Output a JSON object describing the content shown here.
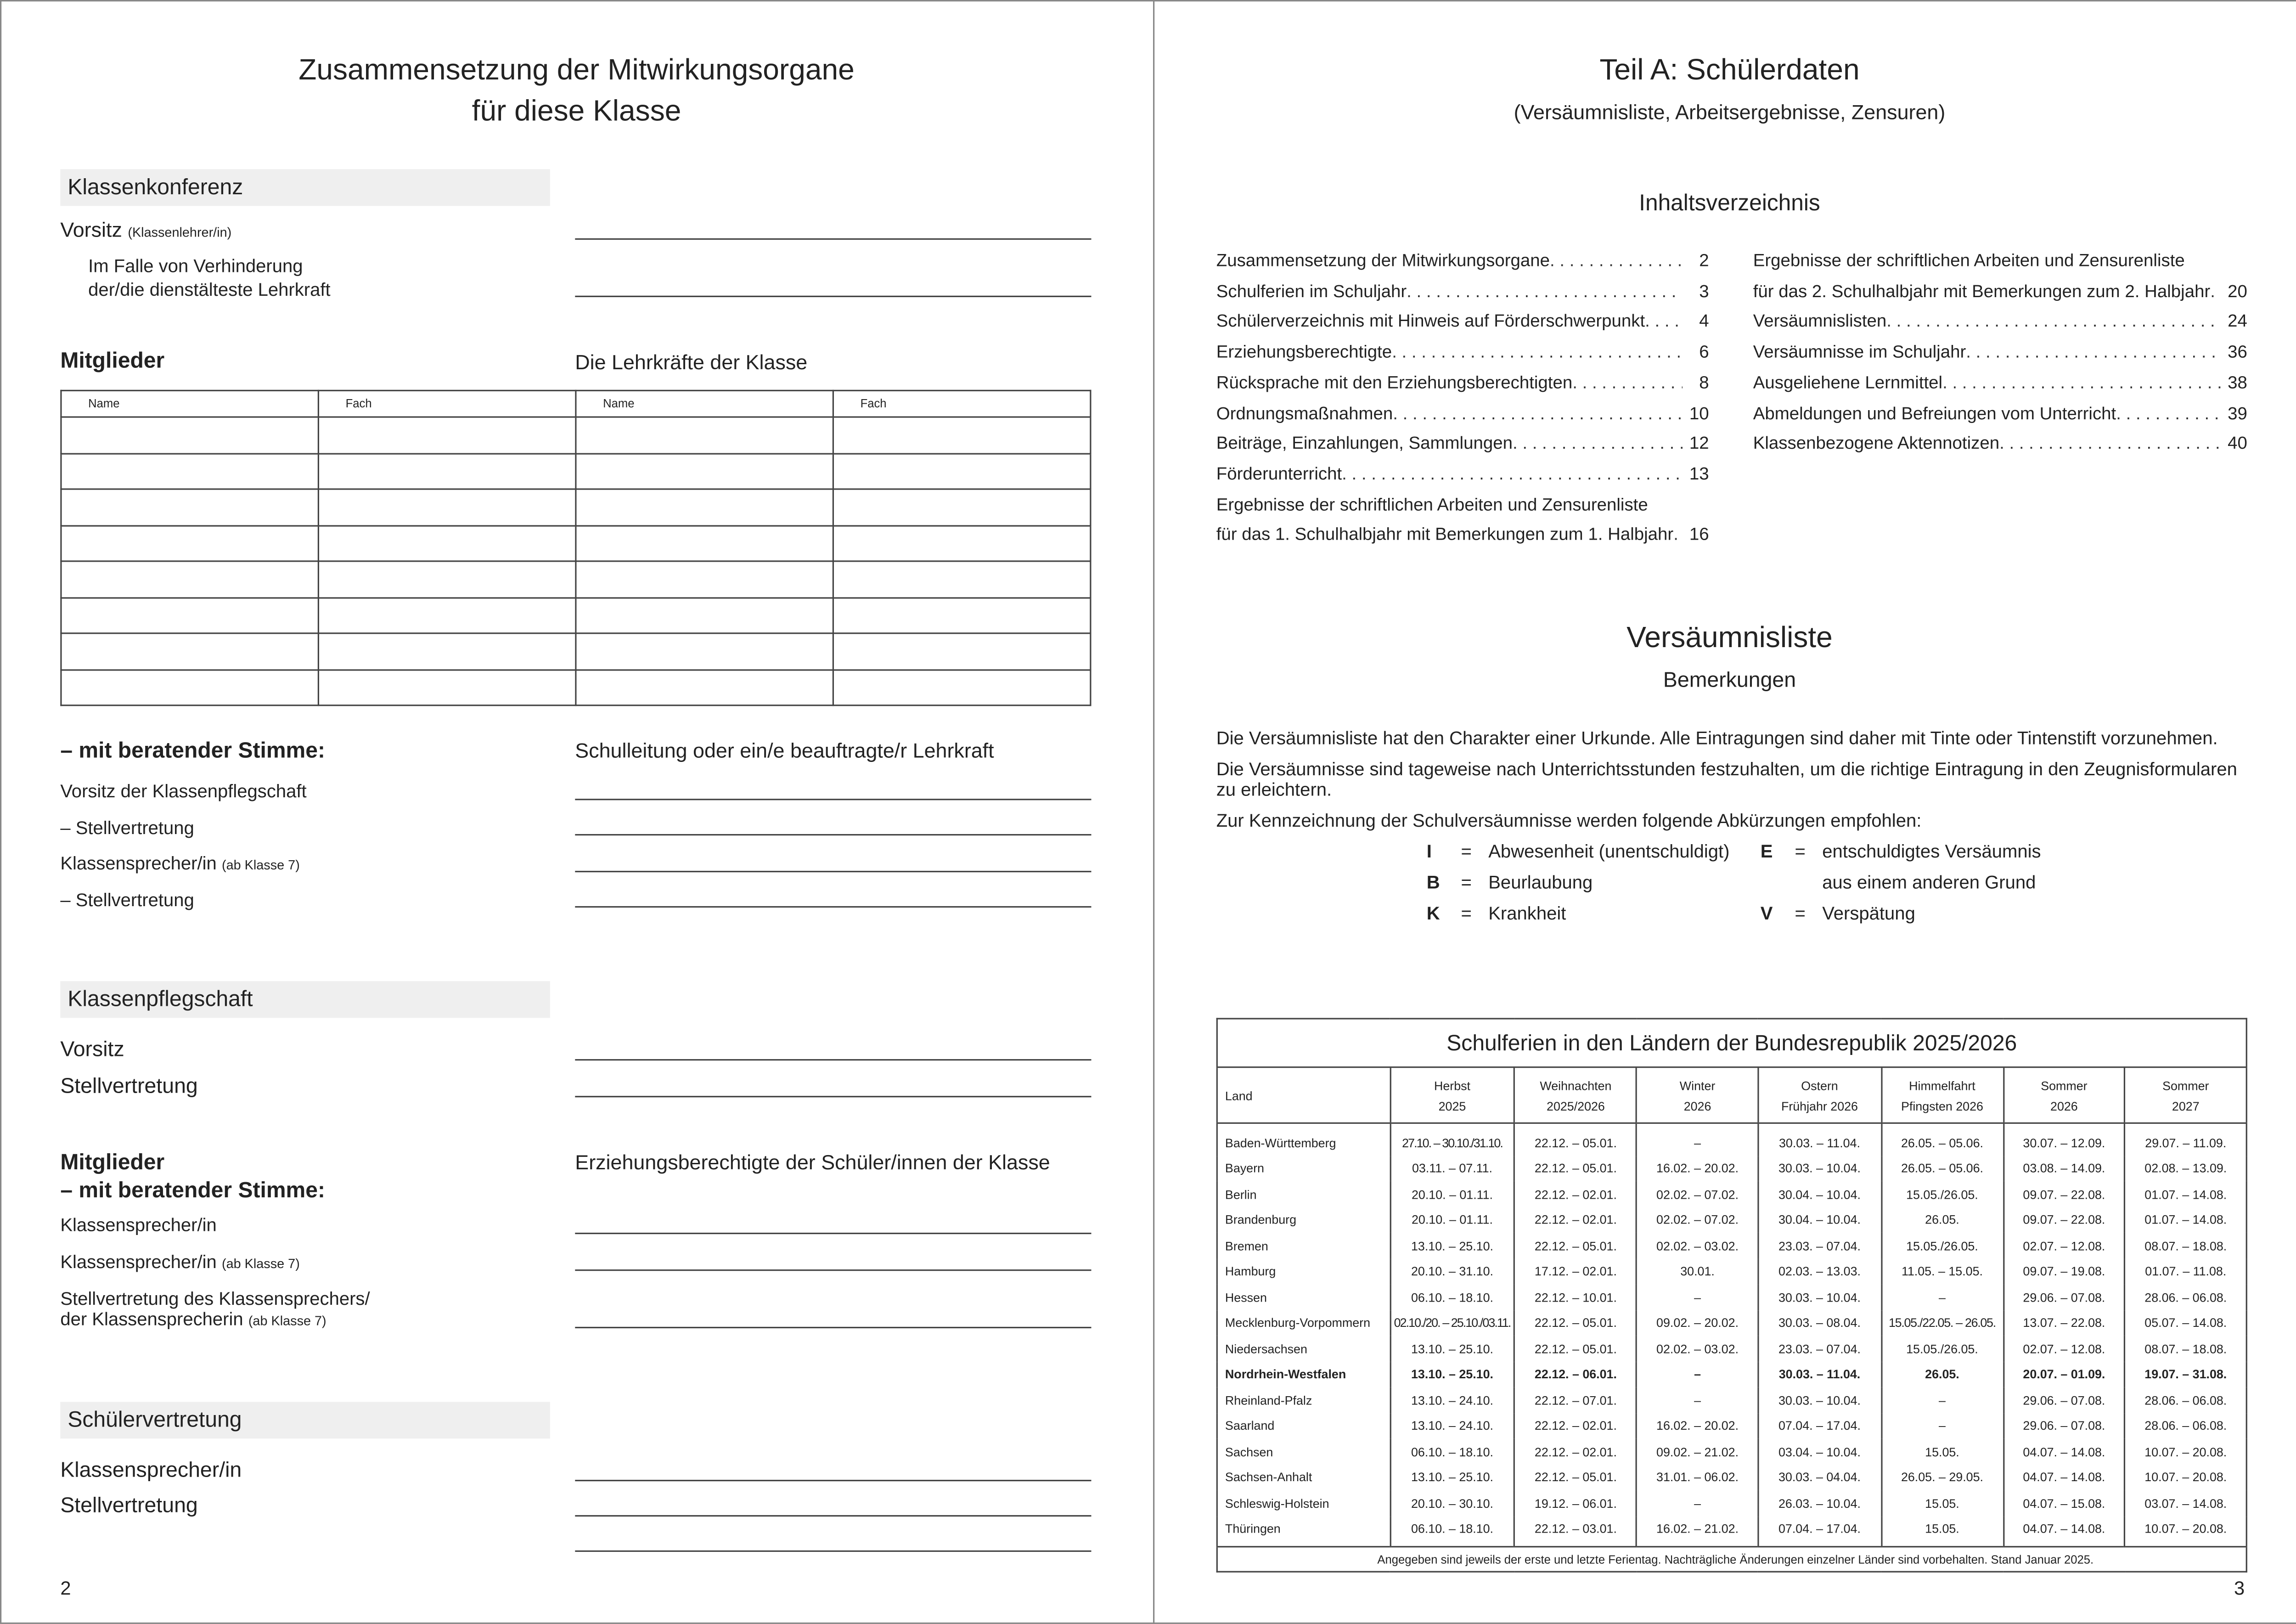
{
  "left": {
    "title_line1": "Zusammensetzung der Mitwirkungsorgane",
    "title_line2": "für diese Klasse",
    "klassenkonferenz": {
      "header": "Klassenkonferenz",
      "vorsitz": "Vorsitz",
      "vorsitz_note": "(Klassenlehrer/in)",
      "verhinderung_line1": "Im Falle von Verhinderung",
      "verhinderung_line2": "der/die dienstälteste Lehrkraft",
      "mitglieder": "Mitglieder",
      "lehrkraefte": "Die Lehrkräfte der Klasse",
      "table_headers": [
        "Name",
        "Fach",
        "Name",
        "Fach"
      ],
      "beratend": "– mit beratender Stimme:",
      "schulleitung": "Schulleitung oder ein/e beauftragte/r Lehrkraft",
      "vorsitz_pflegschaft": "Vorsitz der Klassenpflegschaft",
      "stellvertretung1": "– Stellvertretung",
      "klassensprecher": "Klassensprecher/in",
      "klassensprecher_note": "(ab Klasse 7)",
      "stellvertretung2": "– Stellvertretung"
    },
    "klassenpflegschaft": {
      "header": "Klassenpflegschaft",
      "vorsitz": "Vorsitz",
      "stellvertretung": "Stellvertretung",
      "mitglieder": "Mitglieder",
      "beratend": "–  mit beratender Stimme:",
      "erziehungsberechtigte": "Erziehungsberechtigte der Schüler/innen der Klasse",
      "klassensprecher": "Klassensprecher/in",
      "klassensprecher2": "Klassensprecher/in",
      "klassensprecher2_note": "(ab Klasse 7)",
      "stellv_line1": "Stellvertretung des Klassensprechers/",
      "stellv_line2": "der Klassensprecherin",
      "stellv_note": "(ab Klasse 7)"
    },
    "schuelervertretung": {
      "header": "Schülervertretung",
      "klassensprecher": "Klassensprecher/in",
      "stellvertretung": "Stellvertretung"
    },
    "page_number": "2"
  },
  "right": {
    "title": "Teil A: Schülerdaten",
    "subtitle": "(Versäumnisliste, Arbeitsergebnisse, Zensuren)",
    "toc_title": "Inhaltsverzeichnis",
    "toc_left": [
      {
        "t": "Zusammensetzung der Mitwirkungsorgane",
        "p": "2"
      },
      {
        "t": "Schulferien im Schuljahr",
        "p": "3"
      },
      {
        "t": "Schülerverzeichnis mit Hinweis auf Förderschwerpunkt",
        "p": "4"
      },
      {
        "t": "Erziehungsberechtigte",
        "p": "6"
      },
      {
        "t": "Rücksprache mit den Erziehungsberechtigten",
        "p": "8"
      },
      {
        "t": "Ordnungsmaßnahmen",
        "p": "10"
      },
      {
        "t": "Beiträge, Einzahlungen, Sammlungen",
        "p": "12"
      },
      {
        "t": "Förderunterricht",
        "p": "13"
      },
      {
        "t": "Ergebnisse der schriftlichen Arbeiten und Zensurenliste",
        "p": ""
      },
      {
        "t": "für das 1. Schulhalbjahr mit Bemerkungen zum 1. Halbjahr",
        "p": "16"
      }
    ],
    "toc_right": [
      {
        "t": "Ergebnisse der schriftlichen Arbeiten und Zensurenliste",
        "p": ""
      },
      {
        "t": "für das 2. Schulhalbjahr mit Bemerkungen zum 2. Halbjahr",
        "p": "20"
      },
      {
        "t": "Versäumnislisten",
        "p": "24"
      },
      {
        "t": "Versäumnisse im Schuljahr",
        "p": "36"
      },
      {
        "t": "Ausgeliehene Lernmittel",
        "p": "38"
      },
      {
        "t": "Abmeldungen und Befreiungen vom Unterricht",
        "p": "39"
      },
      {
        "t": "Klassenbezogene Aktennotizen",
        "p": "40"
      }
    ],
    "vl_title": "Versäumnisliste",
    "vl_subtitle": "Bemerkungen",
    "vl_p1": "Die Versäumnisliste hat den Charakter einer Urkunde. Alle Eintragungen sind daher mit Tinte oder Tintenstift vorzunehmen.",
    "vl_p2": "Die Versäumnisse sind tageweise nach Unterrichtsstunden festzuhalten, um die richtige Eintragung in den Zeugnisformularen zu erleichtern.",
    "vl_p3": "Zur Kennzeichnung der Schulversäumnisse werden folgende Abkürzungen empfohlen:",
    "abbreviations": [
      {
        "k": "I",
        "v": "Abwesenheit (unentschuldigt)"
      },
      {
        "k": "E",
        "v": "entschuldigtes Versäumnis"
      },
      {
        "k": "B",
        "v": "Beurlaubung"
      },
      {
        "k": "",
        "v": "aus einem anderen Grund"
      },
      {
        "k": "K",
        "v": "Krankheit"
      },
      {
        "k": "V",
        "v": "Verspätung"
      }
    ],
    "ferien": {
      "title": "Schulferien in den Ländern der Bundesrepublik 2025/2026",
      "columns": [
        [
          "Land",
          ""
        ],
        [
          "Herbst",
          "2025"
        ],
        [
          "Weihnachten",
          "2025/2026"
        ],
        [
          "Winter",
          "2026"
        ],
        [
          "Ostern",
          "Frühjahr 2026"
        ],
        [
          "Himmelfahrt",
          "Pfingsten 2026"
        ],
        [
          "Sommer",
          "2026"
        ],
        [
          "Sommer",
          "2027"
        ]
      ],
      "rows": [
        [
          "Baden-Württemberg",
          "27.10. – 30.10./31.10.",
          "22.12. – 05.01.",
          "–",
          "30.03. – 11.04.",
          "26.05. – 05.06.",
          "30.07. – 12.09.",
          "29.07. – 11.09."
        ],
        [
          "Bayern",
          "03.11. – 07.11.",
          "22.12. – 05.01.",
          "16.02. – 20.02.",
          "30.03. – 10.04.",
          "26.05. – 05.06.",
          "03.08. – 14.09.",
          "02.08. – 13.09."
        ],
        [
          "Berlin",
          "20.10. – 01.11.",
          "22.12. – 02.01.",
          "02.02. – 07.02.",
          "30.04. – 10.04.",
          "15.05./26.05.",
          "09.07. – 22.08.",
          "01.07. – 14.08."
        ],
        [
          "Brandenburg",
          "20.10. – 01.11.",
          "22.12. – 02.01.",
          "02.02. – 07.02.",
          "30.04. – 10.04.",
          "26.05.",
          "09.07. – 22.08.",
          "01.07. – 14.08."
        ],
        [
          "Bremen",
          "13.10. – 25.10.",
          "22.12. – 05.01.",
          "02.02. – 03.02.",
          "23.03. – 07.04.",
          "15.05./26.05.",
          "02.07. – 12.08.",
          "08.07. – 18.08."
        ],
        [
          "Hamburg",
          "20.10. – 31.10.",
          "17.12. – 02.01.",
          "30.01.",
          "02.03. – 13.03.",
          "11.05. – 15.05.",
          "09.07. – 19.08.",
          "01.07. – 11.08."
        ],
        [
          "Hessen",
          "06.10. – 18.10.",
          "22.12. – 10.01.",
          "–",
          "30.03. – 10.04.",
          "–",
          "29.06. – 07.08.",
          "28.06. – 06.08."
        ],
        [
          "Mecklenburg-Vorpommern",
          "02.10./20. – 25.10./03.11.",
          "22.12. – 05.01.",
          "09.02. – 20.02.",
          "30.03. – 08.04.",
          "15.05./22.05. – 26.05.",
          "13.07. – 22.08.",
          "05.07. – 14.08."
        ],
        [
          "Niedersachsen",
          "13.10. – 25.10.",
          "22.12. – 05.01.",
          "02.02. – 03.02.",
          "23.03. – 07.04.",
          "15.05./26.05.",
          "02.07. – 12.08.",
          "08.07. – 18.08."
        ],
        [
          "Nordrhein-Westfalen",
          "13.10. – 25.10.",
          "22.12. – 06.01.",
          "–",
          "30.03. – 11.04.",
          "26.05.",
          "20.07. – 01.09.",
          "19.07. – 31.08."
        ],
        [
          "Rheinland-Pfalz",
          "13.10. – 24.10.",
          "22.12. – 07.01.",
          "–",
          "30.03. – 10.04.",
          "–",
          "29.06. – 07.08.",
          "28.06. – 06.08."
        ],
        [
          "Saarland",
          "13.10. – 24.10.",
          "22.12. – 02.01.",
          "16.02. – 20.02.",
          "07.04. – 17.04.",
          "–",
          "29.06. – 07.08.",
          "28.06. – 06.08."
        ],
        [
          "Sachsen",
          "06.10. – 18.10.",
          "22.12. – 02.01.",
          "09.02. – 21.02.",
          "03.04. – 10.04.",
          "15.05.",
          "04.07. – 14.08.",
          "10.07. – 20.08."
        ],
        [
          "Sachsen-Anhalt",
          "13.10. – 25.10.",
          "22.12. – 05.01.",
          "31.01. – 06.02.",
          "30.03. – 04.04.",
          "26.05. – 29.05.",
          "04.07. – 14.08.",
          "10.07. – 20.08."
        ],
        [
          "Schleswig-Holstein",
          "20.10. – 30.10.",
          "19.12. – 06.01.",
          "–",
          "26.03. – 10.04.",
          "15.05.",
          "04.07. – 15.08.",
          "03.07. – 14.08."
        ],
        [
          "Thüringen",
          "06.10. – 18.10.",
          "22.12. – 03.01.",
          "16.02. – 21.02.",
          "07.04. – 17.04.",
          "15.05.",
          "04.07. – 14.08.",
          "10.07. – 20.08."
        ]
      ],
      "highlight_row": "Nordrhein-Westfalen",
      "note": "Angegeben sind jeweils der erste und letzte Ferientag. Nachträgliche Änderungen einzelner Länder sind vorbehalten. Stand Januar 2025."
    },
    "page_number": "3"
  }
}
